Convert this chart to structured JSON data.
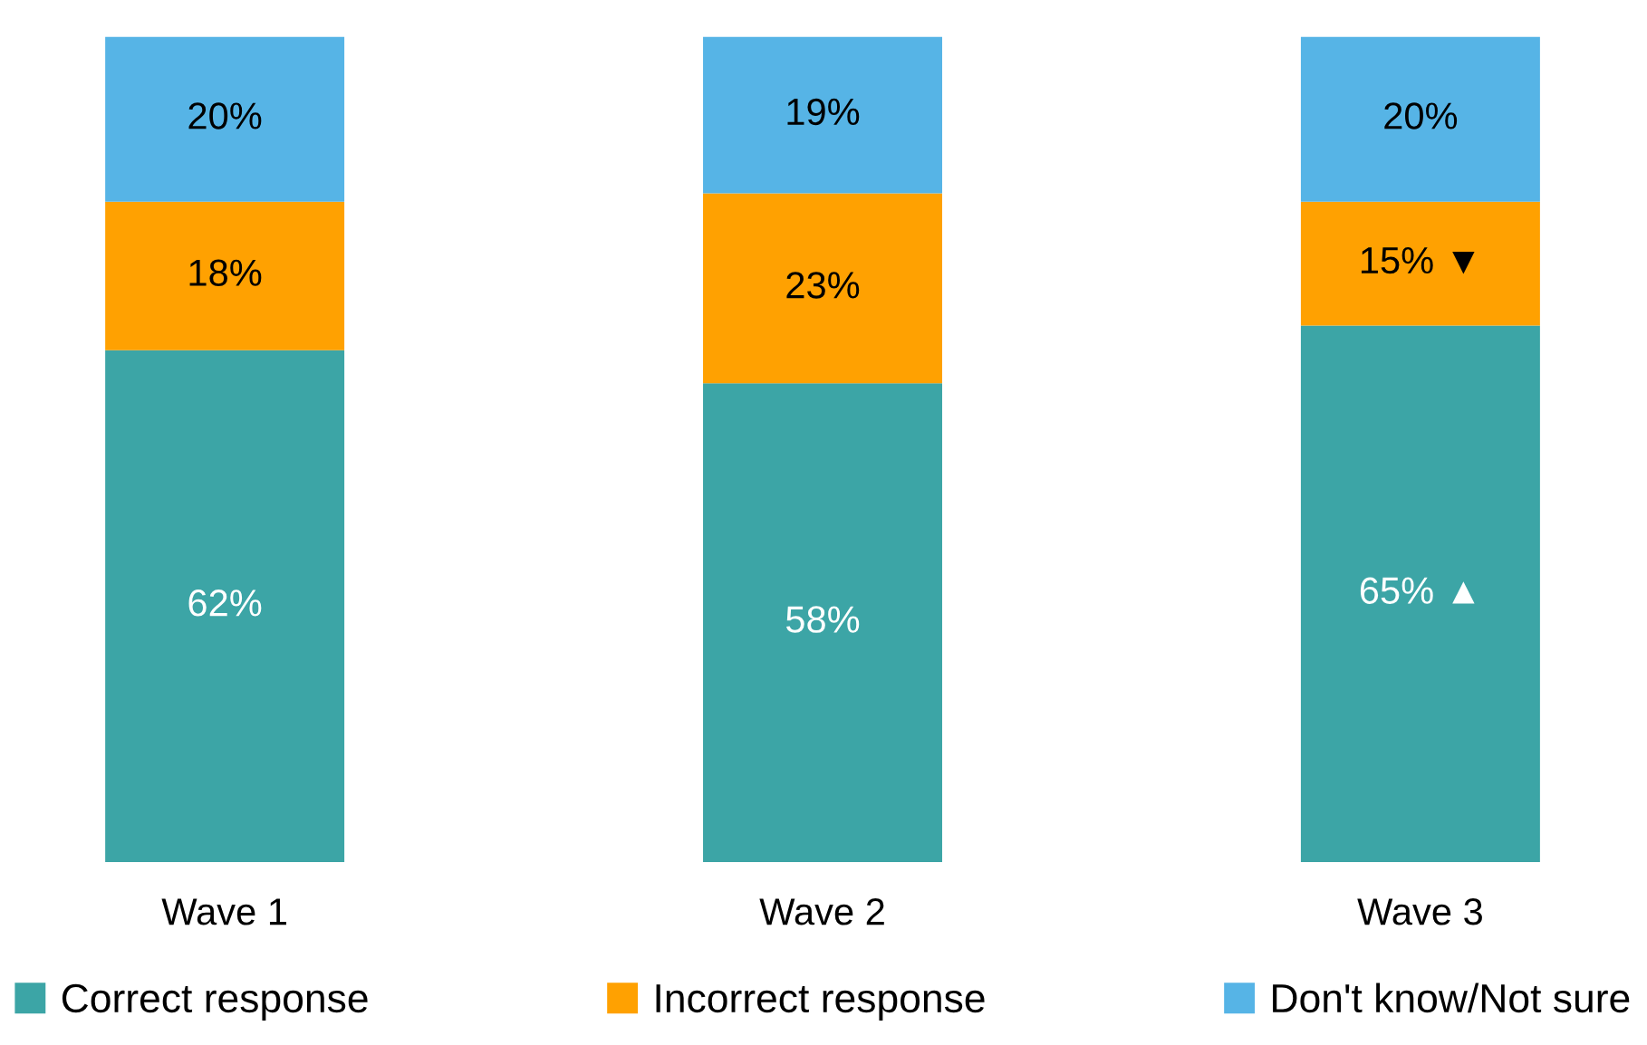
{
  "chart_data": {
    "type": "bar",
    "stacked": true,
    "categories": [
      "Wave 1",
      "Wave 2",
      "Wave 3"
    ],
    "series": [
      {
        "name": "Correct response",
        "color": "#3ca5a6",
        "values": [
          62,
          58,
          65
        ],
        "value_labels": [
          "62%",
          "58%",
          "65% ▲"
        ]
      },
      {
        "name": "Incorrect response",
        "color": "#ffa101",
        "values": [
          18,
          23,
          15
        ],
        "value_labels": [
          "18%",
          "23%",
          "15% ▼"
        ]
      },
      {
        "name": "Don't know/Not sure",
        "color": "#56b4e6",
        "values": [
          20,
          19,
          20
        ],
        "value_labels": [
          "20%",
          "19%",
          "20%"
        ]
      }
    ],
    "legend": "bottom"
  }
}
